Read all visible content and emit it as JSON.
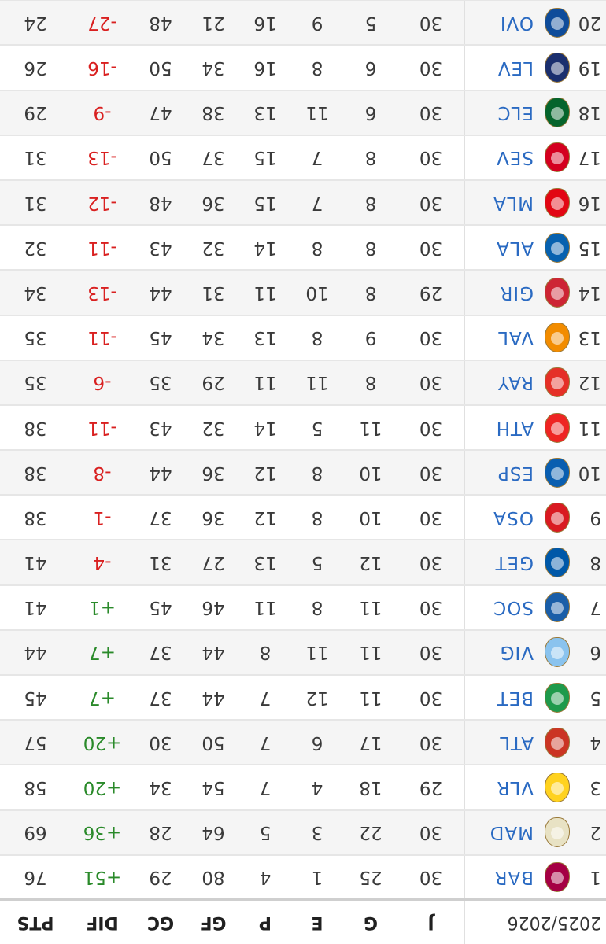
{
  "header": {
    "season": "2025/2026",
    "cols": [
      "J",
      "G",
      "E",
      "P",
      "GF",
      "GC",
      "DIF",
      "PTS"
    ]
  },
  "rows": [
    {
      "pos": "1",
      "team": "BAR",
      "j": "30",
      "g": "25",
      "e": "1",
      "p": "4",
      "gf": "80",
      "gc": "29",
      "dif": "+51",
      "pts": "76",
      "crest_color": "#a50044",
      "dif_sign": "pos"
    },
    {
      "pos": "2",
      "team": "MAD",
      "j": "30",
      "g": "22",
      "e": "3",
      "p": "5",
      "gf": "64",
      "gc": "28",
      "dif": "+36",
      "pts": "69",
      "crest_color": "#e8e2c4",
      "dif_sign": "pos"
    },
    {
      "pos": "3",
      "team": "VLR",
      "j": "29",
      "g": "18",
      "e": "4",
      "p": "7",
      "gf": "54",
      "gc": "34",
      "dif": "+20",
      "pts": "58",
      "crest_color": "#ffd21f",
      "dif_sign": "pos"
    },
    {
      "pos": "4",
      "team": "ATL",
      "j": "30",
      "g": "17",
      "e": "6",
      "p": "7",
      "gf": "50",
      "gc": "30",
      "dif": "+20",
      "pts": "57",
      "crest_color": "#cb3524",
      "dif_sign": "pos"
    },
    {
      "pos": "5",
      "team": "BET",
      "j": "30",
      "g": "11",
      "e": "12",
      "p": "7",
      "gf": "44",
      "gc": "37",
      "dif": "+7",
      "pts": "45",
      "crest_color": "#1f9a4b",
      "dif_sign": "pos"
    },
    {
      "pos": "6",
      "team": "VIG",
      "j": "30",
      "g": "11",
      "e": "11",
      "p": "8",
      "gf": "44",
      "gc": "37",
      "dif": "+7",
      "pts": "44",
      "crest_color": "#8ac3ee",
      "dif_sign": "pos"
    },
    {
      "pos": "7",
      "team": "SOC",
      "j": "30",
      "g": "11",
      "e": "8",
      "p": "11",
      "gf": "46",
      "gc": "45",
      "dif": "+1",
      "pts": "41",
      "crest_color": "#1a5ea8",
      "dif_sign": "pos"
    },
    {
      "pos": "8",
      "team": "GET",
      "j": "30",
      "g": "12",
      "e": "5",
      "p": "13",
      "gf": "27",
      "gc": "31",
      "dif": "-4",
      "pts": "41",
      "crest_color": "#0058a8",
      "dif_sign": "neg"
    },
    {
      "pos": "9",
      "team": "OSA",
      "j": "30",
      "g": "10",
      "e": "8",
      "p": "12",
      "gf": "36",
      "gc": "37",
      "dif": "-1",
      "pts": "38",
      "crest_color": "#d91a21",
      "dif_sign": "neg"
    },
    {
      "pos": "10",
      "team": "ESP",
      "j": "30",
      "g": "10",
      "e": "8",
      "p": "12",
      "gf": "36",
      "gc": "44",
      "dif": "-8",
      "pts": "38",
      "crest_color": "#0a5eb0",
      "dif_sign": "neg"
    },
    {
      "pos": "11",
      "team": "ATH",
      "j": "30",
      "g": "11",
      "e": "5",
      "p": "14",
      "gf": "32",
      "gc": "43",
      "dif": "-11",
      "pts": "38",
      "crest_color": "#ee2523",
      "dif_sign": "neg"
    },
    {
      "pos": "12",
      "team": "RAY",
      "j": "30",
      "g": "8",
      "e": "11",
      "p": "11",
      "gf": "29",
      "gc": "35",
      "dif": "-6",
      "pts": "35",
      "crest_color": "#e53027",
      "dif_sign": "neg"
    },
    {
      "pos": "13",
      "team": "VAL",
      "j": "30",
      "g": "9",
      "e": "8",
      "p": "13",
      "gf": "34",
      "gc": "45",
      "dif": "-11",
      "pts": "35",
      "crest_color": "#f28c00",
      "dif_sign": "neg"
    },
    {
      "pos": "14",
      "team": "GIR",
      "j": "29",
      "g": "8",
      "e": "10",
      "p": "11",
      "gf": "31",
      "gc": "44",
      "dif": "-13",
      "pts": "34",
      "crest_color": "#cd2534",
      "dif_sign": "neg"
    },
    {
      "pos": "15",
      "team": "ALA",
      "j": "30",
      "g": "8",
      "e": "8",
      "p": "14",
      "gf": "32",
      "gc": "43",
      "dif": "-11",
      "pts": "32",
      "crest_color": "#0761af",
      "dif_sign": "neg"
    },
    {
      "pos": "16",
      "team": "MLA",
      "j": "30",
      "g": "8",
      "e": "7",
      "p": "15",
      "gf": "36",
      "gc": "48",
      "dif": "-12",
      "pts": "31",
      "crest_color": "#e20613",
      "dif_sign": "neg"
    },
    {
      "pos": "17",
      "team": "SEV",
      "j": "30",
      "g": "8",
      "e": "7",
      "p": "15",
      "gf": "37",
      "gc": "50",
      "dif": "-13",
      "pts": "31",
      "crest_color": "#d4001f",
      "dif_sign": "neg"
    },
    {
      "pos": "18",
      "team": "ELC",
      "j": "30",
      "g": "6",
      "e": "11",
      "p": "13",
      "gf": "38",
      "gc": "47",
      "dif": "-9",
      "pts": "29",
      "crest_color": "#05642c",
      "dif_sign": "neg"
    },
    {
      "pos": "19",
      "team": "LEV",
      "j": "30",
      "g": "6",
      "e": "8",
      "p": "16",
      "gf": "34",
      "gc": "50",
      "dif": "-16",
      "pts": "26",
      "crest_color": "#1b2f6e",
      "dif_sign": "neg"
    },
    {
      "pos": "20",
      "team": "OVI",
      "j": "30",
      "g": "5",
      "e": "9",
      "p": "16",
      "gf": "21",
      "gc": "48",
      "dif": "-27",
      "pts": "24",
      "crest_color": "#0f4c9a",
      "dif_sign": "neg"
    }
  ]
}
